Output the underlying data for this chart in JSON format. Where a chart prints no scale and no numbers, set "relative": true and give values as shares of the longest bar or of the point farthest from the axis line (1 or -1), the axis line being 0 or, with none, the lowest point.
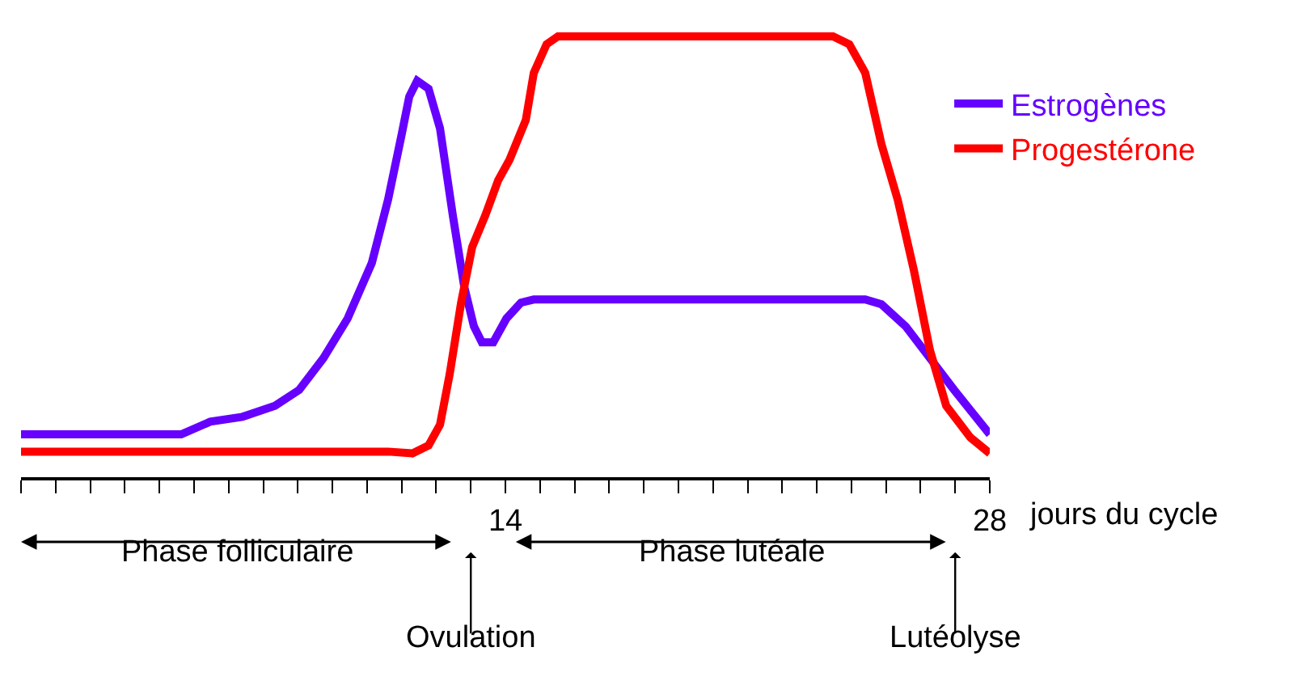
{
  "chart_data": {
    "type": "line",
    "relative": true,
    "xlabel": "jours du cycle",
    "xlim": [
      0,
      28
    ],
    "xticks": [
      {
        "value": 0,
        "label": null
      },
      {
        "value": 1,
        "label": null
      },
      {
        "value": 2,
        "label": null
      },
      {
        "value": 3,
        "label": null
      },
      {
        "value": 4,
        "label": null
      },
      {
        "value": 5,
        "label": null
      },
      {
        "value": 6,
        "label": null
      },
      {
        "value": 7,
        "label": null
      },
      {
        "value": 8,
        "label": null
      },
      {
        "value": 9,
        "label": null
      },
      {
        "value": 10,
        "label": null
      },
      {
        "value": 11,
        "label": null
      },
      {
        "value": 12,
        "label": null
      },
      {
        "value": 13,
        "label": null
      },
      14,
      {
        "value": 15,
        "label": null
      },
      {
        "value": 16,
        "label": null
      },
      {
        "value": 17,
        "label": null
      },
      {
        "value": 18,
        "label": null
      },
      {
        "value": 19,
        "label": null
      },
      {
        "value": 20,
        "label": null
      },
      {
        "value": 21,
        "label": null
      },
      {
        "value": 22,
        "label": null
      },
      {
        "value": 23,
        "label": null
      },
      {
        "value": 24,
        "label": null
      },
      {
        "value": 25,
        "label": null
      },
      {
        "value": 26,
        "label": null
      },
      {
        "value": 27,
        "label": null
      },
      28
    ],
    "series": [
      {
        "name": "Estrogènes",
        "color": "#6600ff",
        "x": [
          0,
          4.63,
          5.47,
          6.4,
          7.34,
          8.04,
          8.74,
          9.44,
          10.14,
          10.61,
          10.99,
          11.22,
          11.45,
          11.78,
          12.11,
          12.48,
          12.81,
          13.09,
          13.32,
          13.65,
          14.03,
          14.45,
          14.82,
          24.4,
          24.87,
          25.57,
          26.27,
          26.97,
          28
        ],
        "values": [
          0.097,
          0.097,
          0.126,
          0.137,
          0.162,
          0.198,
          0.27,
          0.36,
          0.486,
          0.63,
          0.773,
          0.863,
          0.899,
          0.881,
          0.791,
          0.594,
          0.432,
          0.342,
          0.306,
          0.306,
          0.36,
          0.396,
          0.403,
          0.403,
          0.392,
          0.342,
          0.27,
          0.198,
          0.097
        ]
      },
      {
        "name": "Progestérone",
        "color": "#ff0000",
        "x": [
          0,
          10.61,
          11.31,
          11.78,
          12.11,
          12.39,
          12.72,
          13.04,
          13.42,
          13.79,
          14.12,
          14.59,
          14.82,
          15.19,
          15.52,
          23.47,
          23.94,
          24.4,
          24.87,
          25.34,
          25.81,
          26.27,
          26.74,
          27.44,
          28
        ],
        "values": [
          0.058,
          0.058,
          0.054,
          0.072,
          0.119,
          0.234,
          0.396,
          0.522,
          0.594,
          0.673,
          0.72,
          0.81,
          0.917,
          0.982,
          1,
          1,
          0.982,
          0.917,
          0.755,
          0.629,
          0.468,
          0.288,
          0.162,
          0.09,
          0.054
        ]
      }
    ],
    "annotations": [
      "Phase folliculaire",
      "Phase lutéale",
      {
        "text": "Ovulation",
        "x": 13
      },
      {
        "text": "Lutéolyse",
        "x": 27
      }
    ],
    "legend": "right",
    "grid": false,
    "tick_labels": "x",
    "marker": "none",
    "line_style": "solid"
  }
}
